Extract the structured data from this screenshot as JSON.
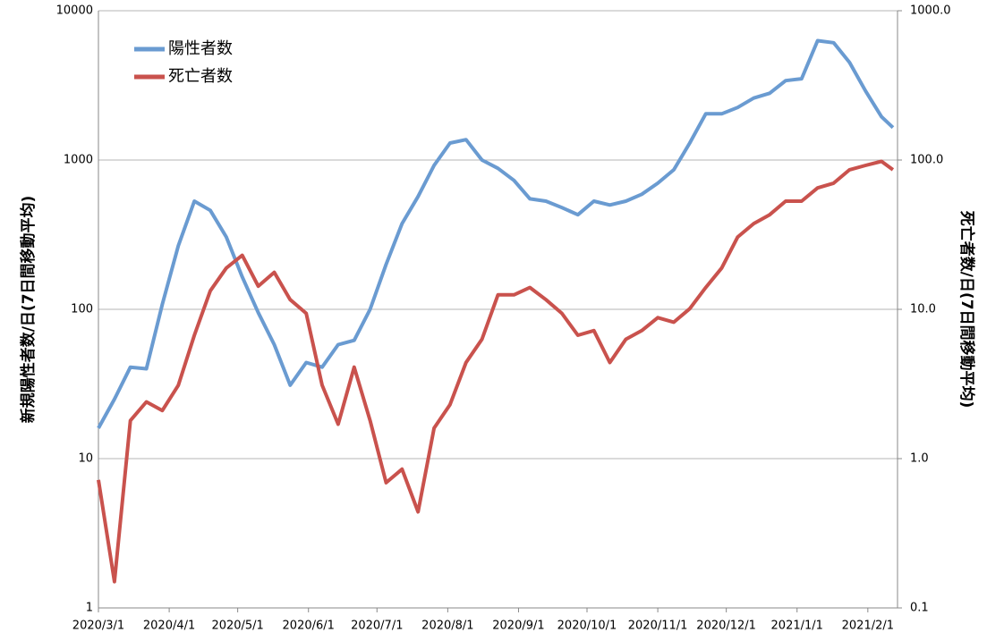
{
  "chart_data": {
    "type": "line",
    "y_label": "新規陽性者数/日(7日間移動平均)",
    "y2_label": "死亡者数/日(7日間移動平均)",
    "x": [
      "2020/3/1",
      "2020/3/8",
      "2020/3/15",
      "2020/3/22",
      "2020/3/29",
      "2020/4/5",
      "2020/4/12",
      "2020/4/19",
      "2020/4/26",
      "2020/5/3",
      "2020/5/10",
      "2020/5/17",
      "2020/5/24",
      "2020/5/31",
      "2020/6/7",
      "2020/6/14",
      "2020/6/21",
      "2020/6/28",
      "2020/7/5",
      "2020/7/12",
      "2020/7/19",
      "2020/7/26",
      "2020/8/2",
      "2020/8/9",
      "2020/8/16",
      "2020/8/23",
      "2020/8/30",
      "2020/9/6",
      "2020/9/13",
      "2020/9/20",
      "2020/9/27",
      "2020/10/4",
      "2020/10/11",
      "2020/10/18",
      "2020/10/25",
      "2020/11/1",
      "2020/11/8",
      "2020/11/15",
      "2020/11/22",
      "2020/11/29",
      "2020/12/6",
      "2020/12/13",
      "2020/12/20",
      "2020/12/27",
      "2021/1/3",
      "2021/1/10",
      "2021/1/17",
      "2021/1/24",
      "2021/1/31",
      "2021/2/7",
      "2021/2/12"
    ],
    "series": [
      {
        "name": "陽性者数",
        "color": "#6a9bd1",
        "values": [
          16,
          25,
          41,
          40,
          108,
          267,
          530,
          460,
          305,
          165,
          95,
          58,
          31,
          44,
          41,
          58,
          62,
          100,
          200,
          375,
          570,
          920,
          1300,
          1370,
          1000,
          880,
          730,
          550,
          530,
          480,
          430,
          530,
          500,
          530,
          590,
          700,
          860,
          1300,
          2040,
          2040,
          2250,
          2600,
          2800,
          3400,
          3500,
          6300,
          6100,
          4500,
          2900,
          1950,
          1650
        ]
      },
      {
        "name": "死亡者数",
        "color": "#c9524d",
        "axis": "y2",
        "values": [
          0.72,
          0.15,
          1.8,
          2.4,
          2.1,
          3.1,
          6.7,
          13.3,
          18.9,
          23,
          14.3,
          17.7,
          11.6,
          9.4,
          3.1,
          1.7,
          4.1,
          1.8,
          0.69,
          0.85,
          0.44,
          1.6,
          2.3,
          4.4,
          6.3,
          12.5,
          12.5,
          14,
          11.6,
          9.4,
          6.7,
          7.2,
          4.4,
          6.3,
          7.2,
          8.8,
          8.2,
          10.1,
          14,
          18.9,
          30.5,
          37.5,
          43,
          53,
          53,
          65,
          70,
          86,
          92,
          98,
          86
        ]
      }
    ],
    "xlim": [
      "2020/3/1",
      "2021/2/14"
    ],
    "xticks": [
      "2020/3/1",
      "2020/4/1",
      "2020/5/1",
      "2020/6/1",
      "2020/7/1",
      "2020/8/1",
      "2020/9/1",
      "2020/10/1",
      "2020/11/1",
      "2020/12/1",
      "2021/1/1",
      "2021/2/1"
    ],
    "ylim": [
      1,
      10000
    ],
    "yticks": [
      1,
      10,
      100,
      1000,
      10000
    ],
    "y2lim": [
      0.1,
      1000
    ],
    "y2ticks": [
      0.1,
      {
        "value": 1,
        "label": "1.0"
      },
      {
        "value": 10,
        "label": "10.0"
      },
      {
        "value": 100,
        "label": "100.0"
      },
      {
        "value": 1000,
        "label": "1000.0"
      }
    ],
    "log_scale": true,
    "grid": true,
    "legend": "upper left"
  }
}
